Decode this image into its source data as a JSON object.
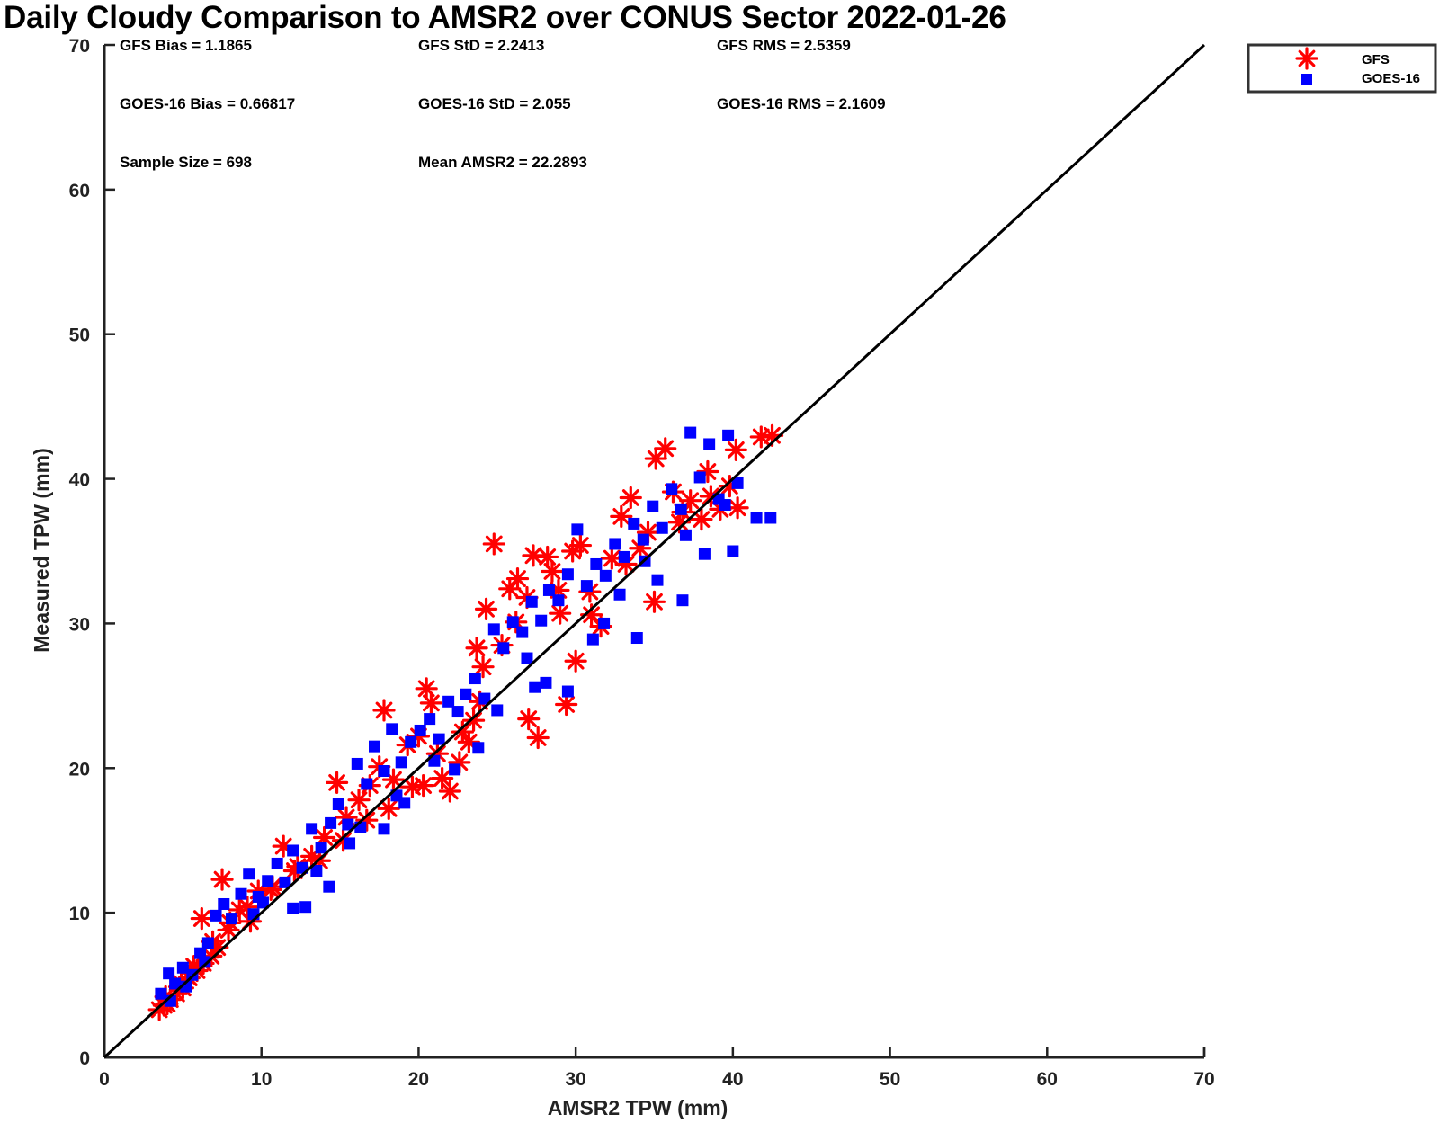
{
  "chart_data": {
    "type": "scatter",
    "title": "Daily Cloudy Comparison to AMSR2 over CONUS Sector 2022-01-26",
    "xlabel": "AMSR2 TPW (mm)",
    "ylabel": "Measured TPW (mm)",
    "xlim": [
      0,
      70
    ],
    "ylim": [
      0,
      70
    ],
    "xticks": [
      0,
      10,
      20,
      30,
      40,
      50,
      60,
      70
    ],
    "yticks": [
      0,
      10,
      20,
      30,
      40,
      50,
      60,
      70
    ],
    "legend_position": "outside top-right",
    "reference_line": "one-to-one (y = x)",
    "stats": {
      "gfs_bias": "GFS Bias = 1.1865",
      "gfs_std": "GFS StD = 2.2413",
      "gfs_rms": "GFS RMS = 2.5359",
      "goes_bias": "GOES-16 Bias = 0.66817",
      "goes_std": "GOES-16 StD = 2.055",
      "goes_rms": "GOES-16 RMS = 2.1609",
      "sample_size": "Sample Size = 698",
      "mean_amsr2": "Mean AMSR2 = 22.2893"
    },
    "series": [
      {
        "name": "GFS",
        "marker": "asterisk",
        "color": "#ff0000",
        "points": [
          [
            3.5,
            3.3
          ],
          [
            3.8,
            3.6
          ],
          [
            4.2,
            4.0
          ],
          [
            4.6,
            4.4
          ],
          [
            5.0,
            4.8
          ],
          [
            5.4,
            5.5
          ],
          [
            5.9,
            6.0
          ],
          [
            6.3,
            6.5
          ],
          [
            6.8,
            7.0
          ],
          [
            7.2,
            7.6
          ],
          [
            6.2,
            9.6
          ],
          [
            7.5,
            12.3
          ],
          [
            7.9,
            8.8
          ],
          [
            8.6,
            10.2
          ],
          [
            9.3,
            9.4
          ],
          [
            9.8,
            11.5
          ],
          [
            10.7,
            11.8
          ],
          [
            11.4,
            14.6
          ],
          [
            12.3,
            13.2
          ],
          [
            13.2,
            13.9
          ],
          [
            14.0,
            15.2
          ],
          [
            14.8,
            19.0
          ],
          [
            15.4,
            16.6
          ],
          [
            16.2,
            17.8
          ],
          [
            16.9,
            18.8
          ],
          [
            17.5,
            20.1
          ],
          [
            17.8,
            24.0
          ],
          [
            18.4,
            19.2
          ],
          [
            19.3,
            21.6
          ],
          [
            20.0,
            22.2
          ],
          [
            20.5,
            25.5
          ],
          [
            20.8,
            24.5
          ],
          [
            21.5,
            19.3
          ],
          [
            22.0,
            18.4
          ],
          [
            22.6,
            20.4
          ],
          [
            23.2,
            21.8
          ],
          [
            23.9,
            24.6
          ],
          [
            23.7,
            28.3
          ],
          [
            24.3,
            31.0
          ],
          [
            24.8,
            35.5
          ],
          [
            25.3,
            28.5
          ],
          [
            25.8,
            32.4
          ],
          [
            26.3,
            33.1
          ],
          [
            26.9,
            31.8
          ],
          [
            27.3,
            34.7
          ],
          [
            27.0,
            23.4
          ],
          [
            27.6,
            22.1
          ],
          [
            28.2,
            34.6
          ],
          [
            28.9,
            32.3
          ],
          [
            29.4,
            24.4
          ],
          [
            29.8,
            35.0
          ],
          [
            30.3,
            35.4
          ],
          [
            30.0,
            27.4
          ],
          [
            30.9,
            32.2
          ],
          [
            31.6,
            29.8
          ],
          [
            32.3,
            34.5
          ],
          [
            32.9,
            37.4
          ],
          [
            33.5,
            38.7
          ],
          [
            34.1,
            35.2
          ],
          [
            34.6,
            36.3
          ],
          [
            35.1,
            41.4
          ],
          [
            35.7,
            42.1
          ],
          [
            36.2,
            39.1
          ],
          [
            36.8,
            37.7
          ],
          [
            37.3,
            38.5
          ],
          [
            38.0,
            37.2
          ],
          [
            38.6,
            38.8
          ],
          [
            39.2,
            37.9
          ],
          [
            39.8,
            39.5
          ],
          [
            40.3,
            38.0
          ],
          [
            40.2,
            42.0
          ],
          [
            41.8,
            42.9
          ],
          [
            42.5,
            43.0
          ],
          [
            35.0,
            31.5
          ],
          [
            33.2,
            34.1
          ],
          [
            31.0,
            30.6
          ],
          [
            28.5,
            33.6
          ],
          [
            26.2,
            30.1
          ],
          [
            24.1,
            27.0
          ],
          [
            22.8,
            22.5
          ],
          [
            21.2,
            21.0
          ],
          [
            19.6,
            18.7
          ],
          [
            18.1,
            17.2
          ],
          [
            16.7,
            16.4
          ],
          [
            15.2,
            15.0
          ],
          [
            13.7,
            13.6
          ],
          [
            12.1,
            12.9
          ],
          [
            10.6,
            11.6
          ],
          [
            9.1,
            10.4
          ],
          [
            8.0,
            9.3
          ],
          [
            6.9,
            8.0
          ],
          [
            5.7,
            6.3
          ],
          [
            4.9,
            5.1
          ],
          [
            4.0,
            3.7
          ],
          [
            3.9,
            4.2
          ],
          [
            20.3,
            18.8
          ],
          [
            23.5,
            23.3
          ],
          [
            29.0,
            30.7
          ],
          [
            36.6,
            37.0
          ],
          [
            38.4,
            40.5
          ]
        ]
      },
      {
        "name": "GOES-16",
        "marker": "square",
        "color": "#0000ff",
        "points": [
          [
            3.6,
            4.4
          ],
          [
            4.1,
            5.8
          ],
          [
            4.5,
            5.1
          ],
          [
            5.0,
            6.2
          ],
          [
            5.6,
            5.7
          ],
          [
            6.1,
            7.2
          ],
          [
            6.6,
            7.9
          ],
          [
            7.1,
            9.8
          ],
          [
            7.6,
            10.6
          ],
          [
            8.1,
            9.6
          ],
          [
            8.7,
            11.3
          ],
          [
            9.2,
            12.7
          ],
          [
            9.8,
            11.1
          ],
          [
            10.4,
            12.2
          ],
          [
            11.0,
            13.4
          ],
          [
            11.5,
            12.1
          ],
          [
            12.0,
            14.3
          ],
          [
            12.6,
            13.1
          ],
          [
            13.2,
            15.8
          ],
          [
            13.8,
            14.5
          ],
          [
            14.4,
            16.2
          ],
          [
            14.9,
            17.5
          ],
          [
            15.5,
            16.1
          ],
          [
            16.1,
            20.3
          ],
          [
            16.7,
            18.9
          ],
          [
            17.2,
            21.5
          ],
          [
            17.8,
            19.8
          ],
          [
            18.3,
            22.7
          ],
          [
            18.9,
            20.4
          ],
          [
            19.5,
            21.8
          ],
          [
            20.1,
            22.6
          ],
          [
            20.7,
            23.4
          ],
          [
            21.3,
            22.0
          ],
          [
            21.9,
            24.6
          ],
          [
            22.5,
            23.9
          ],
          [
            23.0,
            25.1
          ],
          [
            23.6,
            26.2
          ],
          [
            24.2,
            24.8
          ],
          [
            24.8,
            29.6
          ],
          [
            25.4,
            28.3
          ],
          [
            26.0,
            30.1
          ],
          [
            26.6,
            29.4
          ],
          [
            27.2,
            31.5
          ],
          [
            27.8,
            30.2
          ],
          [
            28.3,
            32.3
          ],
          [
            28.9,
            31.6
          ],
          [
            29.5,
            33.4
          ],
          [
            30.1,
            36.5
          ],
          [
            30.7,
            32.6
          ],
          [
            31.3,
            34.1
          ],
          [
            31.9,
            33.3
          ],
          [
            32.5,
            35.5
          ],
          [
            33.1,
            34.6
          ],
          [
            33.7,
            36.9
          ],
          [
            34.3,
            35.8
          ],
          [
            34.9,
            38.1
          ],
          [
            35.5,
            36.6
          ],
          [
            36.1,
            39.3
          ],
          [
            36.7,
            37.9
          ],
          [
            37.3,
            43.2
          ],
          [
            37.9,
            40.1
          ],
          [
            38.5,
            42.4
          ],
          [
            39.1,
            38.6
          ],
          [
            39.7,
            43.0
          ],
          [
            40.3,
            39.7
          ],
          [
            40.0,
            35.0
          ],
          [
            41.5,
            37.3
          ],
          [
            42.4,
            37.3
          ],
          [
            12.0,
            10.3
          ],
          [
            12.8,
            10.4
          ],
          [
            14.3,
            11.8
          ],
          [
            17.8,
            15.8
          ],
          [
            22.3,
            19.9
          ],
          [
            28.1,
            25.9
          ],
          [
            29.5,
            25.3
          ],
          [
            33.9,
            29.0
          ],
          [
            36.8,
            31.6
          ],
          [
            38.2,
            34.8
          ],
          [
            25.0,
            24.0
          ],
          [
            27.4,
            25.6
          ],
          [
            31.1,
            28.9
          ],
          [
            35.2,
            33.0
          ],
          [
            19.1,
            17.6
          ],
          [
            16.3,
            15.9
          ],
          [
            10.1,
            10.7
          ],
          [
            6.4,
            6.6
          ],
          [
            5.2,
            4.9
          ],
          [
            4.2,
            3.9
          ],
          [
            23.8,
            21.4
          ],
          [
            31.8,
            30.0
          ],
          [
            34.4,
            34.3
          ],
          [
            26.9,
            27.6
          ],
          [
            21.0,
            20.5
          ],
          [
            15.6,
            14.8
          ],
          [
            9.5,
            9.9
          ],
          [
            39.5,
            38.2
          ],
          [
            37.0,
            36.1
          ],
          [
            32.8,
            32.0
          ],
          [
            18.6,
            18.1
          ],
          [
            13.5,
            12.9
          ]
        ]
      }
    ],
    "legend": [
      {
        "label": "GFS",
        "marker": "asterisk",
        "color": "#ff0000"
      },
      {
        "label": "GOES-16",
        "marker": "square",
        "color": "#0000ff"
      }
    ]
  }
}
